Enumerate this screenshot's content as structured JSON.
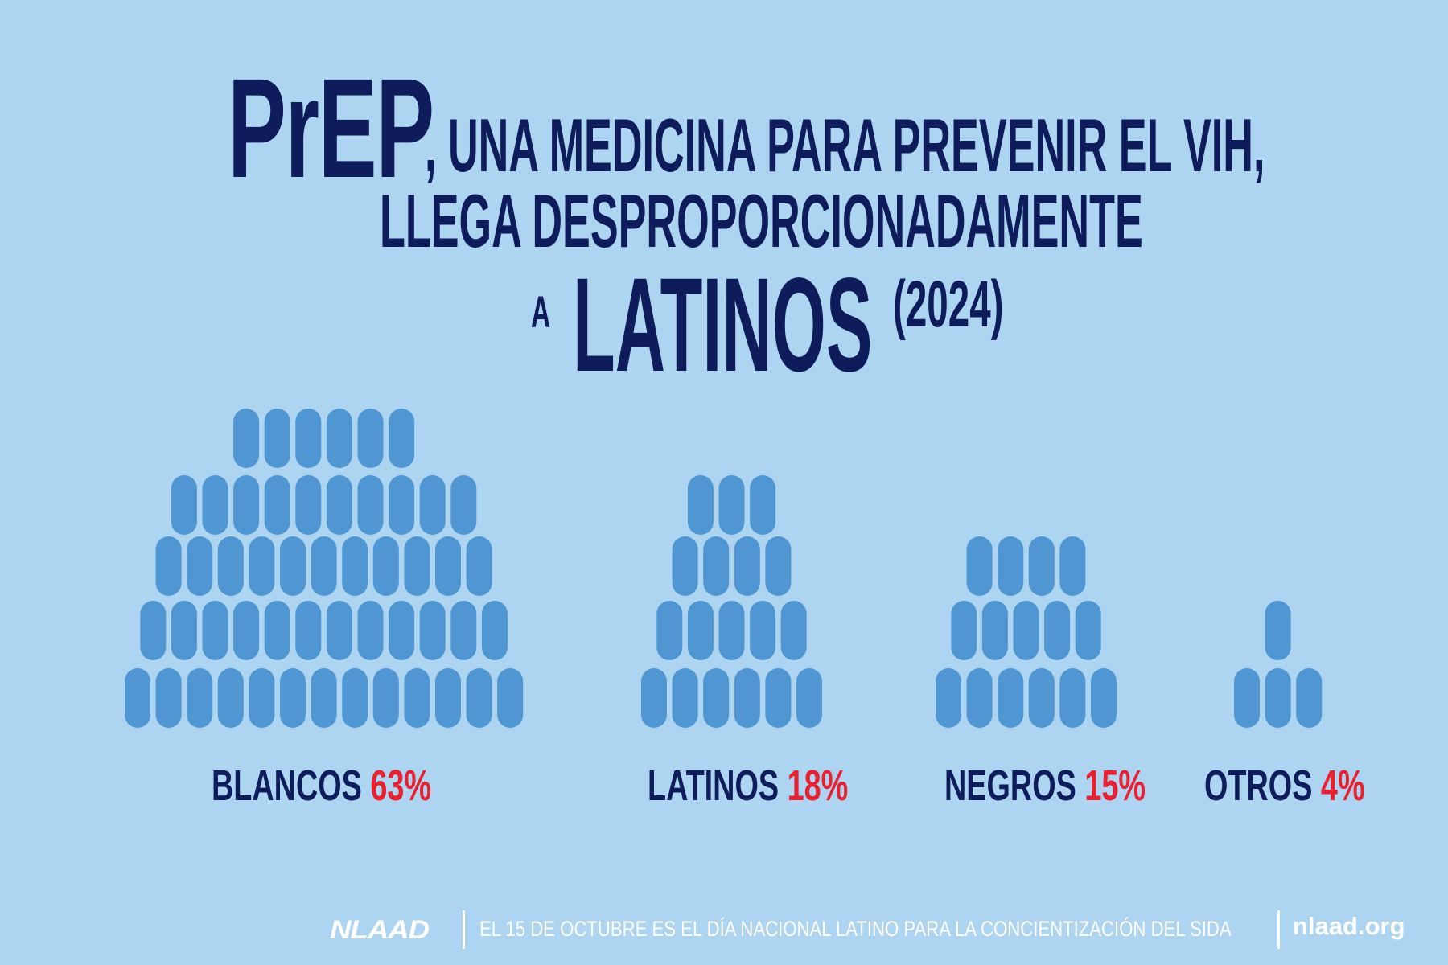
{
  "colors": {
    "background": "#add5f1",
    "title": "#0e1c5b",
    "pill": "#5096d2",
    "percent": "#e8202f",
    "footer": "#ffffff"
  },
  "title": {
    "prep": "PrEP",
    "line1": ", UNA MEDICINA PARA PREVENIR EL VIH,",
    "line2": "LLEGA DESPROPORCIONADAMENTE",
    "a": "A",
    "latinos": "LATINOS",
    "year": "(2024)"
  },
  "chart_data": {
    "type": "pictogram",
    "title": "PrEP, una medicina para prevenir el VIH, llega desproporcionadamente a Latinos (2024)",
    "unit": "percent of PrEP users",
    "categories": [
      "BLANCOS",
      "LATINOS",
      "NEGROS",
      "OTROS"
    ],
    "values": [
      63,
      18,
      15,
      4
    ],
    "labels": [
      "63%",
      "18%",
      "15%",
      "4%"
    ],
    "icon": "pill-icon",
    "icon_rows": [
      [
        6,
        10,
        11,
        12,
        13
      ],
      [
        3,
        4,
        5,
        6
      ],
      [
        4,
        5,
        6
      ],
      [
        1,
        3
      ]
    ]
  },
  "footer": {
    "logo": "NLAAD",
    "text": "EL 15 DE OCTUBRE ES EL DÍA NACIONAL LATINO PARA LA CONCIENTIZACIÓN DEL SIDA",
    "url": "nlaad.org"
  }
}
